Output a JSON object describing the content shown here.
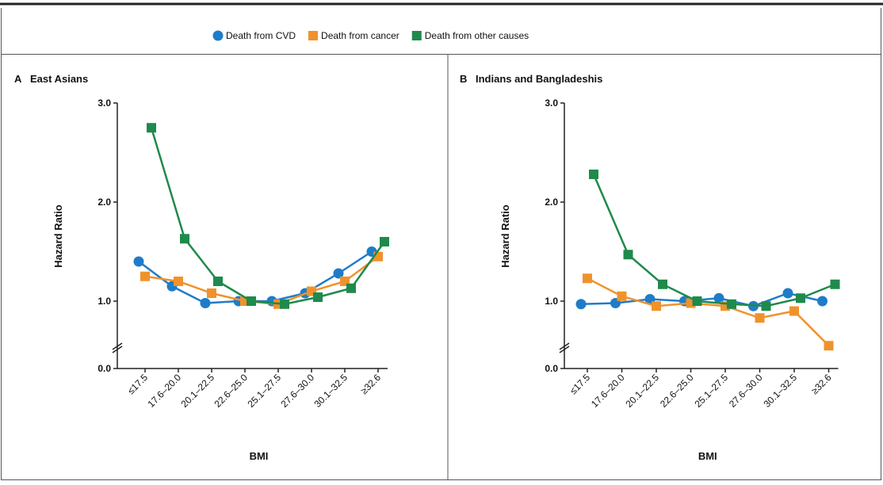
{
  "chart_data": [
    {
      "type": "line",
      "label": "A",
      "title": "East Asians",
      "y_label": "Hazard Ratio",
      "x_label": "BMI",
      "categories": [
        "≤17.5",
        "17.6–20.0",
        "20.1–22.5",
        "22.6–25.0",
        "25.1–27.5",
        "27.6–30.0",
        "30.1–32.5",
        "≥32.6"
      ],
      "ylim": [
        0,
        3
      ],
      "axis_break": 0.36,
      "yticks": [
        {
          "value": 0,
          "label": "0.0"
        },
        {
          "value": 1,
          "label": "1.0"
        },
        {
          "value": 2,
          "label": "2.0"
        },
        {
          "value": 3,
          "label": "3.0"
        }
      ],
      "series": [
        {
          "name": "Death from CVD",
          "color": "#1f7cc8",
          "marker": "circle",
          "values": [
            1.4,
            1.15,
            0.98,
            1.0,
            1.0,
            1.08,
            1.28,
            1.5
          ]
        },
        {
          "name": "Death from cancer",
          "color": "#f0922b",
          "marker": "square",
          "values": [
            1.25,
            1.2,
            1.08,
            1.0,
            0.97,
            1.1,
            1.2,
            1.45
          ]
        },
        {
          "name": "Death from other causes",
          "color": "#1e8a4c",
          "marker": "square",
          "values": [
            2.75,
            1.63,
            1.2,
            1.0,
            0.97,
            1.04,
            1.13,
            1.6
          ]
        }
      ]
    },
    {
      "type": "line",
      "label": "B",
      "title": "Indians and Bangladeshis",
      "y_label": "Hazard Ratio",
      "x_label": "BMI",
      "categories": [
        "≤17.5",
        "17.6–20.0",
        "20.1–22.5",
        "22.6–25.0",
        "25.1–27.5",
        "27.6–30.0",
        "30.1–32.5",
        "≥32.6"
      ],
      "ylim": [
        0,
        3
      ],
      "axis_break": 0.36,
      "yticks": [
        {
          "value": 0,
          "label": "0.0"
        },
        {
          "value": 1,
          "label": "1.0"
        },
        {
          "value": 2,
          "label": "2.0"
        },
        {
          "value": 3,
          "label": "3.0"
        }
      ],
      "series": [
        {
          "name": "Death from CVD",
          "color": "#1f7cc8",
          "marker": "circle",
          "values": [
            0.97,
            0.98,
            1.02,
            1.0,
            1.03,
            0.95,
            1.08,
            1.0
          ]
        },
        {
          "name": "Death from cancer",
          "color": "#f0922b",
          "marker": "square",
          "values": [
            1.23,
            1.05,
            0.95,
            0.98,
            0.95,
            0.83,
            0.9,
            0.55
          ]
        },
        {
          "name": "Death from other causes",
          "color": "#1e8a4c",
          "marker": "square",
          "values": [
            2.28,
            1.47,
            1.17,
            1.0,
            0.97,
            0.95,
            1.03,
            1.17
          ]
        }
      ]
    }
  ]
}
